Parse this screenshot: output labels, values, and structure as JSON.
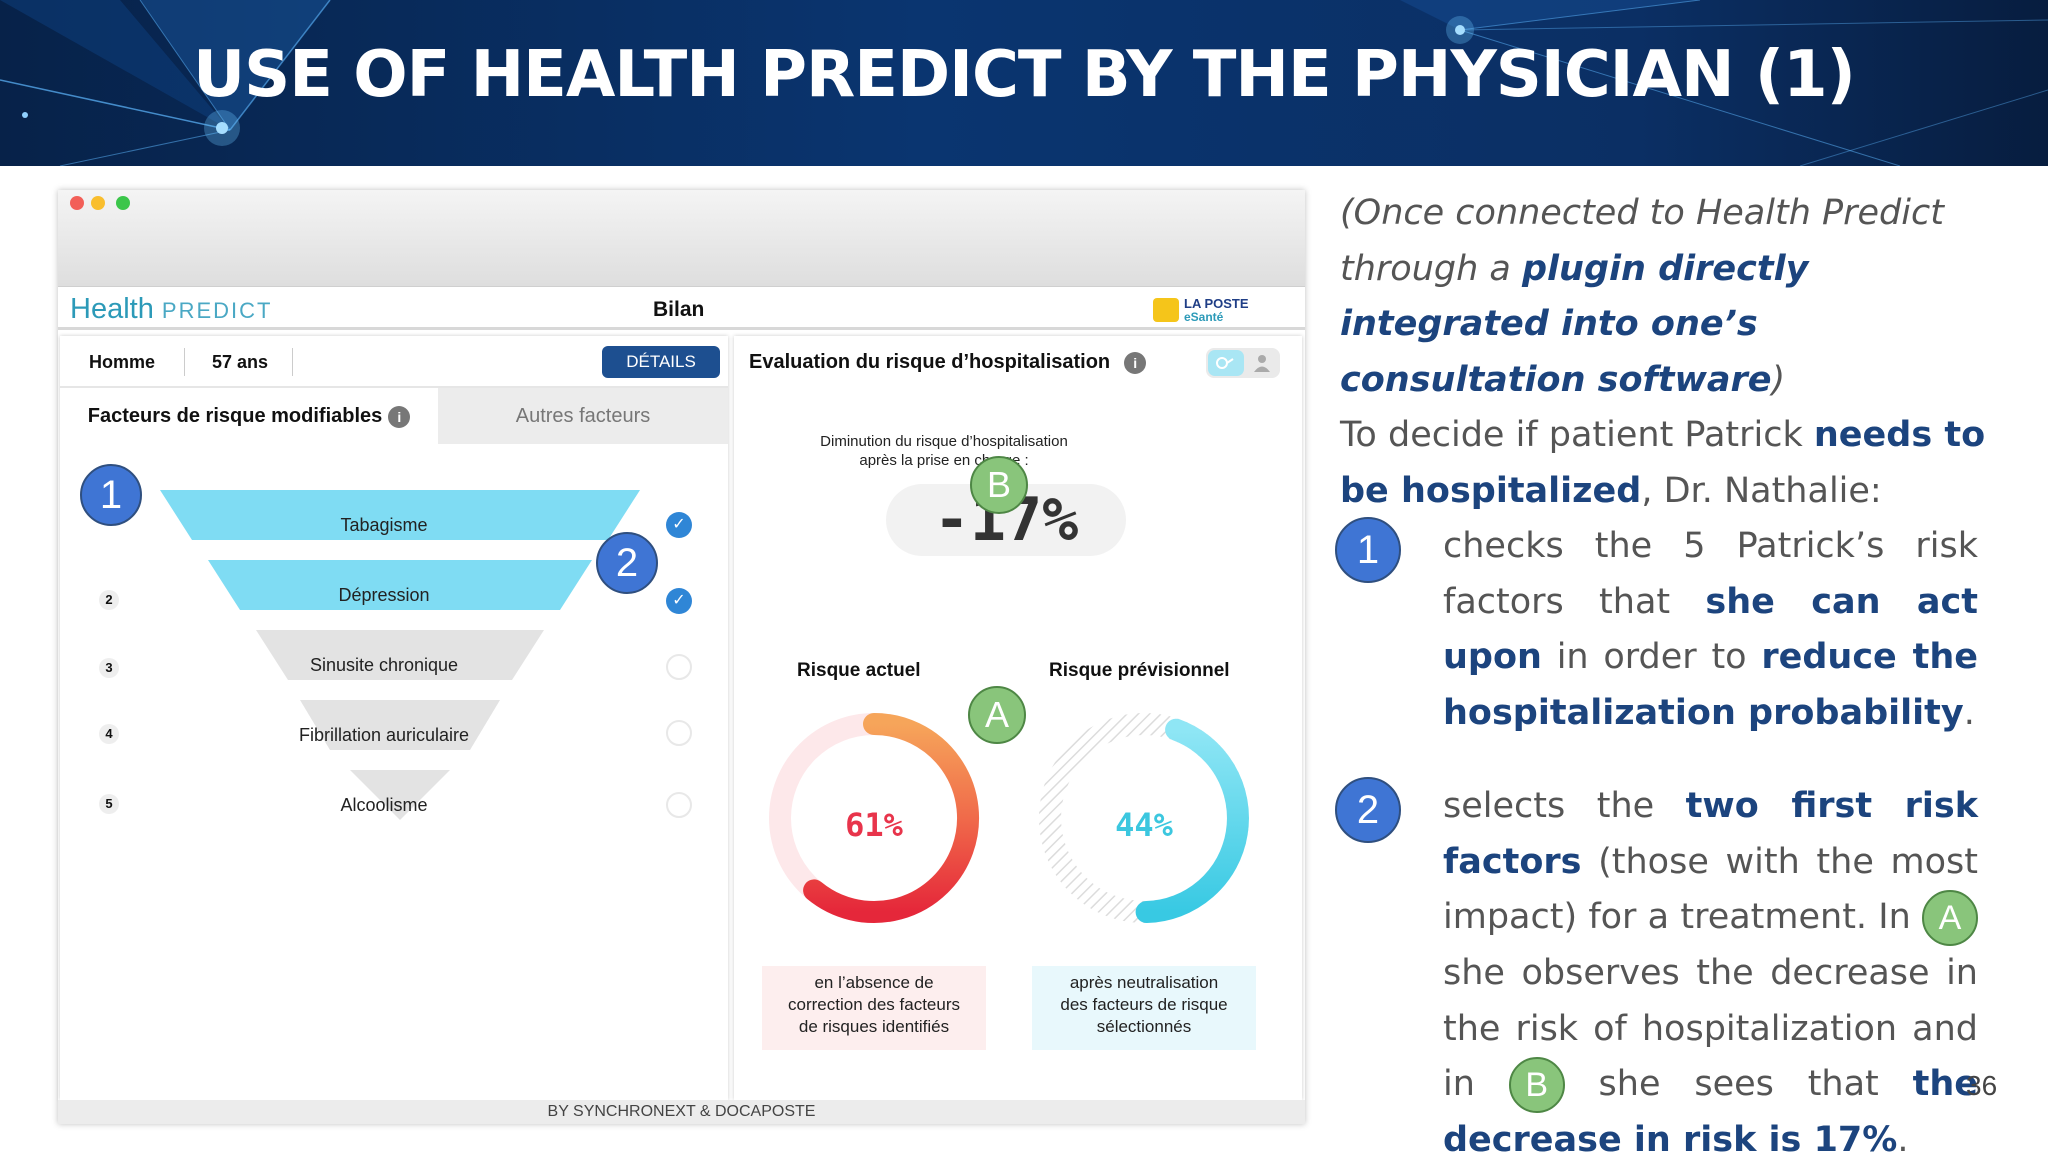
{
  "slide": {
    "title": "USE OF HEALTH PREDICT BY THE PHYSICIAN (1)",
    "page_number": "36"
  },
  "app": {
    "logo_main": "Health",
    "logo_sub": "PREDICT",
    "page_title": "Bilan",
    "partner_logo_line1": "LA POSTE",
    "partner_logo_line2": "eSanté",
    "patient_gender": "Homme",
    "patient_age": "57 ans",
    "details_button": "DÉTAILS",
    "tab_modifiable": "Facteurs de risque modifiables",
    "tab_other": "Autres facteurs",
    "info_glyph": "i",
    "risk_factors": [
      {
        "rank": "1",
        "label": "Tabagisme",
        "selected": true,
        "color": "#7fdcf3"
      },
      {
        "rank": "2",
        "label": "Dépression",
        "selected": true,
        "color": "#7fdcf3"
      },
      {
        "rank": "3",
        "label": "Sinusite chronique",
        "selected": false,
        "color": "#e3e3e3"
      },
      {
        "rank": "4",
        "label": "Fibrillation auriculaire",
        "selected": false,
        "color": "#e3e3e3"
      },
      {
        "rank": "5",
        "label": "Alcoolisme",
        "selected": false,
        "color": "#e3e3e3"
      }
    ],
    "eval_title": "Evaluation du risque d’hospitalisation",
    "decrease_label_line1": "Diminution du risque d’hospitalisation",
    "decrease_label_line2": "après la prise en charge :",
    "decrease_value": "-17%",
    "current_risk_label": "Risque actuel",
    "current_risk_value": "61%",
    "current_risk_fraction": 0.61,
    "current_risk_caption": [
      "en l’absence de",
      "correction des facteurs",
      "de risques identifiés"
    ],
    "forecast_risk_label": "Risque prévisionnel",
    "forecast_risk_value": "44%",
    "forecast_risk_fraction": 0.44,
    "forecast_risk_caption": [
      "après neutralisation",
      "des facteurs de risque",
      "sélectionnés"
    ],
    "footer": "BY SYNCHRONEXT & DOCAPOSTE"
  },
  "badges": {
    "one": "1",
    "two": "2",
    "a": "A",
    "b": "B"
  },
  "colors": {
    "banner": "#0a3570",
    "accent_text": "#1c447e",
    "badge_blue": "#3f75d4",
    "badge_green": "#89c57b",
    "current_risk": "#e5273a",
    "forecast_risk": "#38c9e3",
    "details_button": "#1d4f90"
  },
  "text": {
    "intro_1": "(Once connected to Health Predict through a ",
    "intro_b1": "plugin directly integrated into one’s consultation software",
    "intro_2": ")",
    "decide_1": "To decide if patient Patrick ",
    "decide_b": "needs to be hospitalized",
    "decide_2": ", Dr. Nathalie:",
    "step1_1": "checks the 5 Patrick’s risk factors that ",
    "step1_b1": "she can act upon",
    "step1_2": " in order to ",
    "step1_b2": "reduce the hospitalization probability",
    "step1_3": ".",
    "step2_1": "selects the ",
    "step2_b1": "two first risk factors",
    "step2_2": " (those with the most impact) for a treatment. In ",
    "step2_3": " she observes the decrease in the risk of hospitalization and in ",
    "step2_4": " she sees that ",
    "step2_b2": "the decrease in risk is 17%",
    "step2_5": "."
  }
}
